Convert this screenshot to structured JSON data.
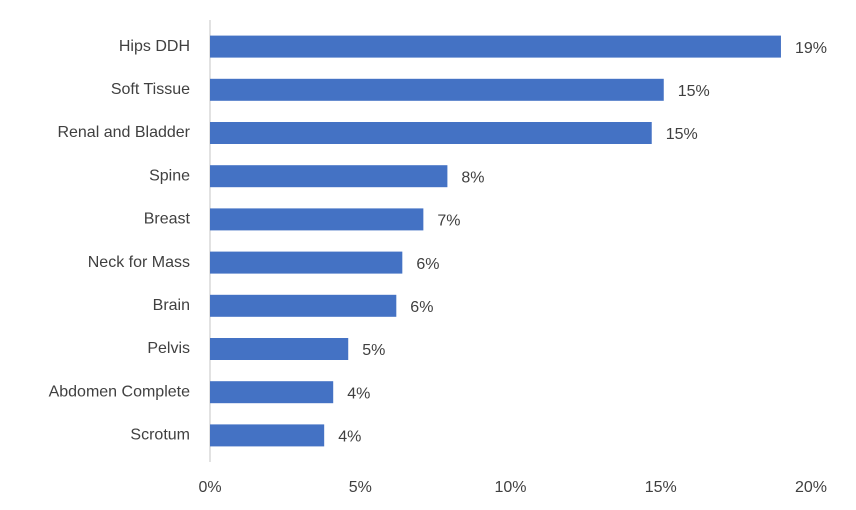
{
  "chart_data": {
    "type": "bar",
    "orientation": "horizontal",
    "categories": [
      "Hips DDH",
      "Soft Tissue",
      "Renal and Bladder",
      "Spine",
      "Breast",
      "Neck for Mass",
      "Brain",
      "Pelvis",
      "Abdomen Complete",
      "Scrotum"
    ],
    "values": [
      19.0,
      15.1,
      14.7,
      7.9,
      7.1,
      6.4,
      6.2,
      4.6,
      4.1,
      3.8
    ],
    "value_labels": [
      "19%",
      "15%",
      "15%",
      "8%",
      "7%",
      "6%",
      "6%",
      "5%",
      "4%",
      "4%"
    ],
    "color": "#4472c4",
    "xlim": [
      0,
      20
    ],
    "xticks": [
      {
        "value": 0,
        "label": "0%"
      },
      {
        "value": 5,
        "label": "5%"
      },
      {
        "value": 10,
        "label": "10%"
      },
      {
        "value": 15,
        "label": "15%"
      },
      {
        "value": 20,
        "label": "20%"
      }
    ],
    "grid": false
  }
}
